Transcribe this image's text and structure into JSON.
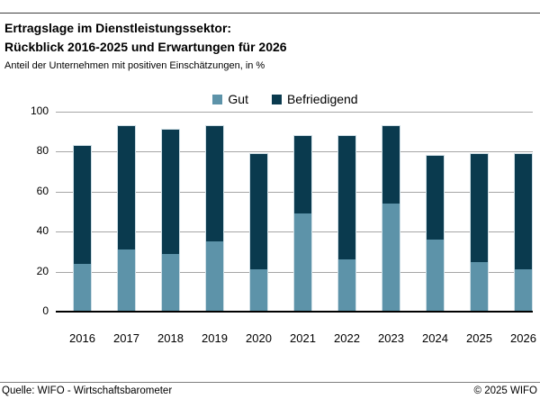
{
  "header": {
    "title_line1": "Ertragslage im Dienstleistungssektor:",
    "title_line2": "Rückblick 2016-2025 und Erwartungen für 2026",
    "subtitle": "Anteil der Unternehmen mit positiven Einschätzungen, in %"
  },
  "chart_data": {
    "type": "bar",
    "stacked": true,
    "title": "Ertragslage im Dienstleistungssektor: Rückblick 2016-2025 und Erwartungen für 2026",
    "subtitle": "Anteil der Unternehmen mit positiven Einschätzungen, in %",
    "categories": [
      "2016",
      "2017",
      "2018",
      "2019",
      "2020",
      "2021",
      "2022",
      "2023",
      "2024",
      "2025",
      "2026"
    ],
    "series": [
      {
        "name": "Gut",
        "color": "#5d93a9",
        "values": [
          24,
          31,
          29,
          35,
          21,
          49,
          26,
          54,
          36,
          25,
          21
        ]
      },
      {
        "name": "Befriedigend",
        "color": "#0a3a4e",
        "values": [
          59,
          62,
          62,
          58,
          58,
          39,
          62,
          39,
          42,
          54,
          58
        ]
      }
    ],
    "xlabel": "",
    "ylabel": "",
    "ylim": [
      0,
      100
    ],
    "yticks": [
      0,
      20,
      40,
      60,
      80,
      100
    ],
    "grid": true,
    "legend_position": "top-center",
    "colors": {
      "grid": "#a6a6a6",
      "axis": "#000000",
      "bar_edge": "#cfdfe6"
    }
  },
  "footer": {
    "source": "Quelle: WIFO - Wirtschaftsbarometer",
    "copyright": "© 2025 WIFO"
  }
}
